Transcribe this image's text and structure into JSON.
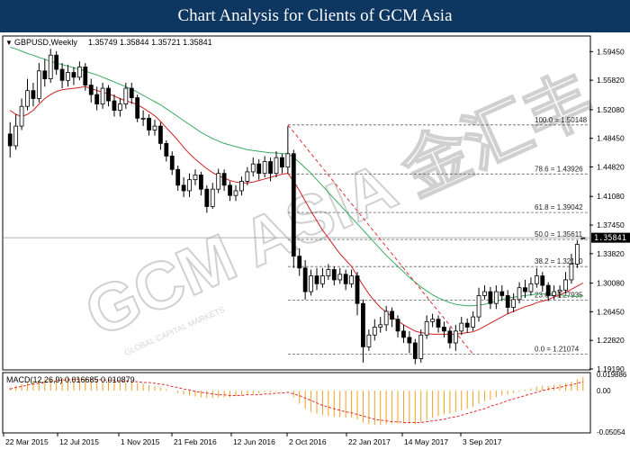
{
  "header": {
    "title": "Chart Analysis for Clients of GCM Asia"
  },
  "watermark": {
    "text": "GCM ASIA 金汇丰",
    "subtext": "GLOBAL CAPITAL MARKETS"
  },
  "chart_data": [
    {
      "type": "candlestick",
      "symbol_label": "GBPUSD,Weekly",
      "ohlc_label": "1.35749 1.35844 1.35721 1.35841",
      "current_price": 1.35841,
      "current_price_label": "1.35841",
      "ylim": [
        1.1919,
        1.612
      ],
      "y_ticks": [
        "1.59450",
        "1.55820",
        "1.52080",
        "1.48450",
        "1.44820",
        "1.41080",
        "1.37450",
        "1.33820",
        "1.30080",
        "1.26450",
        "1.22820",
        "1.19190"
      ],
      "x_ticks": [
        "22 Mar 2015",
        "12 Jul 2015",
        "1 Nov 2015",
        "21 Feb 2016",
        "12 Jun 2016",
        "2 Oct 2016",
        "22 Jan 2017",
        "14 May 2017",
        "3 Sep 2017"
      ],
      "candles": [
        [
          1.49,
          1.475,
          1.505,
          1.46
        ],
        [
          1.475,
          1.5,
          1.515,
          1.47
        ],
        [
          1.5,
          1.525,
          1.535,
          1.495
        ],
        [
          1.525,
          1.545,
          1.56,
          1.52
        ],
        [
          1.545,
          1.535,
          1.555,
          1.525
        ],
        [
          1.535,
          1.57,
          1.58,
          1.53
        ],
        [
          1.57,
          1.56,
          1.585,
          1.55
        ],
        [
          1.56,
          1.59,
          1.598,
          1.555
        ],
        [
          1.59,
          1.572,
          1.595,
          1.565
        ],
        [
          1.572,
          1.558,
          1.58,
          1.548
        ],
        [
          1.558,
          1.568,
          1.578,
          1.55
        ],
        [
          1.568,
          1.562,
          1.575,
          1.552
        ],
        [
          1.562,
          1.575,
          1.582,
          1.558
        ],
        [
          1.575,
          1.552,
          1.58,
          1.545
        ],
        [
          1.552,
          1.54,
          1.56,
          1.53
        ],
        [
          1.54,
          1.528,
          1.55,
          1.52
        ],
        [
          1.528,
          1.548,
          1.555,
          1.522
        ],
        [
          1.548,
          1.532,
          1.552,
          1.525
        ],
        [
          1.532,
          1.52,
          1.54,
          1.512
        ],
        [
          1.52,
          1.528,
          1.535,
          1.512
        ],
        [
          1.528,
          1.548,
          1.555,
          1.522
        ],
        [
          1.548,
          1.536,
          1.555,
          1.528
        ],
        [
          1.536,
          1.51,
          1.54,
          1.505
        ],
        [
          1.51,
          1.51,
          1.52,
          1.5
        ],
        [
          1.51,
          1.495,
          1.515,
          1.488
        ],
        [
          1.495,
          1.5,
          1.508,
          1.488
        ],
        [
          1.5,
          1.478,
          1.505,
          1.47
        ],
        [
          1.478,
          1.462,
          1.482,
          1.455
        ],
        [
          1.462,
          1.445,
          1.468,
          1.438
        ],
        [
          1.445,
          1.425,
          1.45,
          1.418
        ],
        [
          1.425,
          1.418,
          1.435,
          1.41
        ],
        [
          1.418,
          1.432,
          1.44,
          1.41
        ],
        [
          1.432,
          1.438,
          1.445,
          1.425
        ],
        [
          1.438,
          1.42,
          1.442,
          1.412
        ],
        [
          1.42,
          1.398,
          1.425,
          1.39
        ],
        [
          1.398,
          1.42,
          1.428,
          1.395
        ],
        [
          1.42,
          1.44,
          1.446,
          1.415
        ],
        [
          1.44,
          1.425,
          1.445,
          1.418
        ],
        [
          1.425,
          1.412,
          1.43,
          1.405
        ],
        [
          1.412,
          1.418,
          1.425,
          1.405
        ],
        [
          1.418,
          1.43,
          1.436,
          1.412
        ],
        [
          1.43,
          1.442,
          1.448,
          1.425
        ],
        [
          1.442,
          1.452,
          1.46,
          1.436
        ],
        [
          1.452,
          1.44,
          1.458,
          1.432
        ],
        [
          1.44,
          1.455,
          1.462,
          1.435
        ],
        [
          1.455,
          1.44,
          1.46,
          1.43
        ],
        [
          1.44,
          1.46,
          1.468,
          1.435
        ],
        [
          1.46,
          1.448,
          1.465,
          1.44
        ],
        [
          1.448,
          1.465,
          1.5,
          1.44
        ],
        [
          1.465,
          1.335,
          1.47,
          1.32
        ],
        [
          1.335,
          1.32,
          1.345,
          1.31
        ],
        [
          1.32,
          1.29,
          1.33,
          1.28
        ],
        [
          1.29,
          1.31,
          1.318,
          1.285
        ],
        [
          1.31,
          1.3,
          1.32,
          1.292
        ],
        [
          1.3,
          1.31,
          1.32,
          1.295
        ],
        [
          1.31,
          1.318,
          1.325,
          1.305
        ],
        [
          1.318,
          1.305,
          1.322,
          1.298
        ],
        [
          1.305,
          1.312,
          1.32,
          1.3
        ],
        [
          1.312,
          1.3,
          1.318,
          1.292
        ],
        [
          1.3,
          1.31,
          1.318,
          1.295
        ],
        [
          1.31,
          1.275,
          1.315,
          1.26
        ],
        [
          1.275,
          1.22,
          1.28,
          1.2
        ],
        [
          1.22,
          1.235,
          1.242,
          1.215
        ],
        [
          1.235,
          1.245,
          1.255,
          1.228
        ],
        [
          1.245,
          1.248,
          1.258,
          1.238
        ],
        [
          1.248,
          1.265,
          1.272,
          1.24
        ],
        [
          1.265,
          1.255,
          1.27,
          1.245
        ],
        [
          1.255,
          1.24,
          1.26,
          1.232
        ],
        [
          1.24,
          1.232,
          1.248,
          1.225
        ],
        [
          1.232,
          1.225,
          1.24,
          1.212
        ],
        [
          1.225,
          1.205,
          1.23,
          1.198
        ],
        [
          1.205,
          1.235,
          1.242,
          1.2
        ],
        [
          1.235,
          1.252,
          1.26,
          1.23
        ],
        [
          1.252,
          1.255,
          1.262,
          1.245
        ],
        [
          1.255,
          1.245,
          1.26,
          1.238
        ],
        [
          1.245,
          1.24,
          1.252,
          1.232
        ],
        [
          1.24,
          1.225,
          1.245,
          1.218
        ],
        [
          1.225,
          1.24,
          1.248,
          1.215
        ],
        [
          1.24,
          1.25,
          1.258,
          1.235
        ],
        [
          1.25,
          1.245,
          1.256,
          1.238
        ],
        [
          1.245,
          1.258,
          1.265,
          1.24
        ],
        [
          1.258,
          1.285,
          1.295,
          1.252
        ],
        [
          1.285,
          1.29,
          1.298,
          1.28
        ],
        [
          1.29,
          1.275,
          1.296,
          1.268
        ],
        [
          1.275,
          1.29,
          1.298,
          1.268
        ],
        [
          1.29,
          1.285,
          1.298,
          1.278
        ],
        [
          1.285,
          1.27,
          1.292,
          1.262
        ],
        [
          1.27,
          1.28,
          1.288,
          1.264
        ],
        [
          1.28,
          1.295,
          1.302,
          1.275
        ],
        [
          1.295,
          1.29,
          1.305,
          1.282
        ],
        [
          1.29,
          1.3,
          1.308,
          1.285
        ],
        [
          1.3,
          1.31,
          1.32,
          1.295
        ],
        [
          1.31,
          1.298,
          1.315,
          1.29
        ],
        [
          1.298,
          1.285,
          1.302,
          1.278
        ],
        [
          1.285,
          1.29,
          1.298,
          1.28
        ],
        [
          1.29,
          1.292,
          1.298,
          1.282
        ],
        [
          1.292,
          1.305,
          1.315,
          1.288
        ],
        [
          1.305,
          1.325,
          1.338,
          1.3
        ],
        [
          1.325,
          1.35,
          1.355,
          1.32
        ],
        [
          1.3575,
          1.3584,
          1.3585,
          1.3572
        ]
      ],
      "ma_red": [
        1.52,
        1.515,
        1.512,
        1.515,
        1.52,
        1.528,
        1.535,
        1.54,
        1.544,
        1.546,
        1.547,
        1.548,
        1.549,
        1.55,
        1.548,
        1.545,
        1.543,
        1.541,
        1.538,
        1.535,
        1.532,
        1.53,
        1.527,
        1.523,
        1.518,
        1.513,
        1.506,
        1.498,
        1.49,
        1.482,
        1.473,
        1.465,
        1.458,
        1.452,
        1.446,
        1.441,
        1.437,
        1.434,
        1.431,
        1.429,
        1.428,
        1.428,
        1.429,
        1.431,
        1.433,
        1.435,
        1.437,
        1.439,
        1.44,
        1.43,
        1.418,
        1.405,
        1.392,
        1.38,
        1.368,
        1.358,
        1.348,
        1.338,
        1.33,
        1.322,
        1.31,
        1.298,
        1.287,
        1.278,
        1.27,
        1.264,
        1.258,
        1.253,
        1.248,
        1.244,
        1.24,
        1.238,
        1.237,
        1.236,
        1.236,
        1.236,
        1.236,
        1.236,
        1.237,
        1.238,
        1.239,
        1.242,
        1.246,
        1.25,
        1.254,
        1.258,
        1.262,
        1.265,
        1.268,
        1.271,
        1.273,
        1.276,
        1.278,
        1.28,
        1.283,
        1.286,
        1.289,
        1.293,
        1.297,
        1.301
      ],
      "ma_green": [
        1.6,
        1.598,
        1.595,
        1.592,
        1.59,
        1.587,
        1.585,
        1.582,
        1.58,
        1.578,
        1.576,
        1.574,
        1.572,
        1.57,
        1.567,
        1.565,
        1.562,
        1.559,
        1.556,
        1.553,
        1.55,
        1.547,
        1.543,
        1.539,
        1.535,
        1.531,
        1.527,
        1.522,
        1.517,
        1.512,
        1.507,
        1.502,
        1.497,
        1.492,
        1.488,
        1.484,
        1.481,
        1.478,
        1.476,
        1.474,
        1.472,
        1.47,
        1.469,
        1.468,
        1.467,
        1.466,
        1.466,
        1.465,
        1.465,
        1.46,
        1.454,
        1.447,
        1.44,
        1.432,
        1.424,
        1.416,
        1.408,
        1.4,
        1.392,
        1.384,
        1.376,
        1.368,
        1.36,
        1.352,
        1.344,
        1.336,
        1.329,
        1.322,
        1.315,
        1.308,
        1.302,
        1.296,
        1.291,
        1.286,
        1.282,
        1.279,
        1.276,
        1.274,
        1.273,
        1.272,
        1.272,
        1.273,
        1.274,
        1.276,
        1.278,
        1.28,
        1.282,
        1.283,
        1.284,
        1.285,
        1.286,
        1.287,
        1.287,
        1.287,
        1.287,
        1.286,
        1.285,
        1.284,
        1.284,
        1.285
      ],
      "fibonacci": [
        {
          "level_label": "100.0",
          "price": 1.50148,
          "price_label": "1.50148"
        },
        {
          "level_label": "78.6",
          "price": 1.43926,
          "price_label": "1.43926"
        },
        {
          "level_label": "61.8",
          "price": 1.39042,
          "price_label": "1.39042"
        },
        {
          "level_label": "50.0",
          "price": 1.35611,
          "price_label": "1.35611"
        },
        {
          "level_label": "38.2",
          "price": 1.3218,
          "price_label": "1.32180"
        },
        {
          "level_label": "23.6",
          "price": 1.27935,
          "price_label": "1.27935"
        },
        {
          "level_label": "0.0",
          "price": 1.21074,
          "price_label": "1.21074"
        }
      ],
      "trendline": {
        "from": [
          48,
          1.50148
        ],
        "to": [
          80,
          1.21074
        ]
      },
      "colors": {
        "bull": "#ffffff",
        "bear": "#000000",
        "ma_red": "#d02020",
        "ma_green": "#3aaa60",
        "trend": "#e03030"
      }
    },
    {
      "type": "bar",
      "label": "MACD(12,26,9) 0.016685 0.010879",
      "ylim": [
        -0.0505,
        0.0199
      ],
      "y_ticks": [
        "0.019886",
        "0.00",
        "-0.05054"
      ],
      "histogram": [
        0.004,
        0.006,
        0.008,
        0.01,
        0.012,
        0.013,
        0.014,
        0.015,
        0.016,
        0.016,
        0.016,
        0.015,
        0.015,
        0.015,
        0.014,
        0.013,
        0.012,
        0.012,
        0.011,
        0.01,
        0.01,
        0.01,
        0.009,
        0.008,
        0.007,
        0.006,
        0.004,
        0.002,
        0.0,
        -0.003,
        -0.005,
        -0.006,
        -0.007,
        -0.008,
        -0.009,
        -0.009,
        -0.008,
        -0.008,
        -0.008,
        -0.007,
        -0.006,
        -0.005,
        -0.004,
        -0.003,
        -0.002,
        -0.002,
        -0.001,
        0.0,
        0.0,
        -0.008,
        -0.016,
        -0.022,
        -0.026,
        -0.028,
        -0.03,
        -0.031,
        -0.032,
        -0.032,
        -0.033,
        -0.033,
        -0.035,
        -0.039,
        -0.041,
        -0.042,
        -0.042,
        -0.041,
        -0.04,
        -0.04,
        -0.04,
        -0.04,
        -0.041,
        -0.039,
        -0.036,
        -0.033,
        -0.031,
        -0.029,
        -0.028,
        -0.026,
        -0.024,
        -0.022,
        -0.02,
        -0.016,
        -0.013,
        -0.011,
        -0.008,
        -0.006,
        -0.005,
        -0.003,
        -0.001,
        0.001,
        0.003,
        0.005,
        0.006,
        0.006,
        0.007,
        0.008,
        0.009,
        0.011,
        0.014,
        0.0167
      ],
      "signal": [
        0.002,
        0.004,
        0.005,
        0.007,
        0.008,
        0.009,
        0.01,
        0.011,
        0.012,
        0.013,
        0.013,
        0.014,
        0.014,
        0.014,
        0.014,
        0.014,
        0.013,
        0.013,
        0.013,
        0.012,
        0.012,
        0.011,
        0.011,
        0.01,
        0.01,
        0.009,
        0.008,
        0.007,
        0.005,
        0.004,
        0.002,
        0.001,
        -0.001,
        -0.002,
        -0.003,
        -0.004,
        -0.005,
        -0.005,
        -0.006,
        -0.006,
        -0.006,
        -0.005,
        -0.005,
        -0.005,
        -0.004,
        -0.004,
        -0.003,
        -0.003,
        -0.002,
        -0.004,
        -0.006,
        -0.009,
        -0.012,
        -0.015,
        -0.018,
        -0.02,
        -0.022,
        -0.024,
        -0.026,
        -0.027,
        -0.029,
        -0.031,
        -0.033,
        -0.035,
        -0.036,
        -0.037,
        -0.038,
        -0.038,
        -0.039,
        -0.039,
        -0.039,
        -0.039,
        -0.038,
        -0.037,
        -0.036,
        -0.035,
        -0.033,
        -0.032,
        -0.03,
        -0.028,
        -0.026,
        -0.024,
        -0.022,
        -0.019,
        -0.017,
        -0.015,
        -0.012,
        -0.01,
        -0.008,
        -0.006,
        -0.004,
        -0.002,
        0.0,
        0.002,
        0.003,
        0.004,
        0.006,
        0.007,
        0.009,
        0.0109
      ],
      "colors": {
        "histogram": "#f0a020",
        "signal": "#e03030"
      }
    }
  ]
}
